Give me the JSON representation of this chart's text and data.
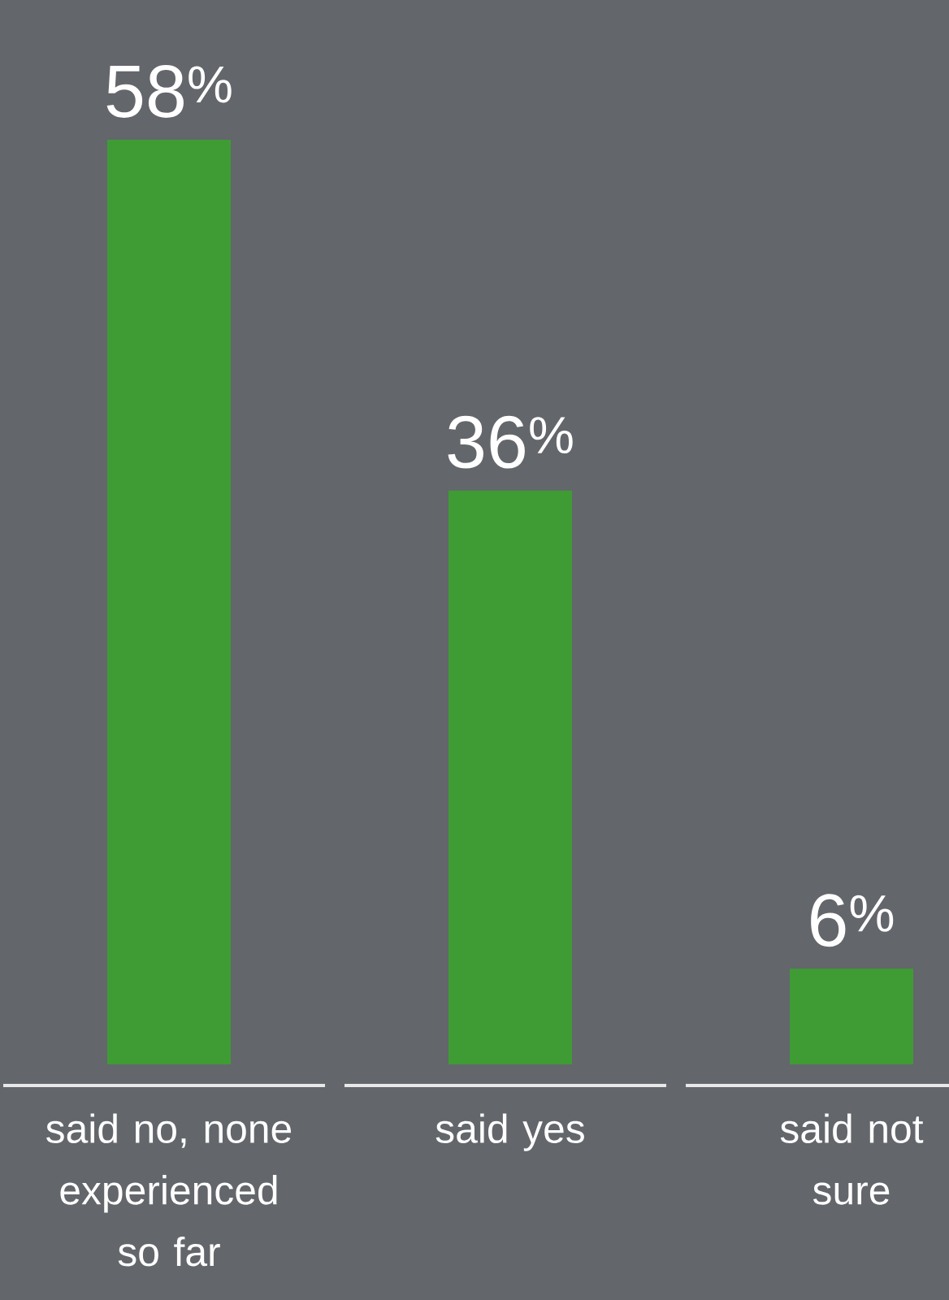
{
  "chart_data": {
    "type": "bar",
    "categories": [
      "said no, none experienced so far",
      "said yes",
      "said not sure"
    ],
    "values": [
      58,
      36,
      6
    ],
    "value_labels": [
      "58$^{%}$",
      "36$^{%}$",
      "6$^{%}$"
    ],
    "color": "#3f9c35"
  }
}
